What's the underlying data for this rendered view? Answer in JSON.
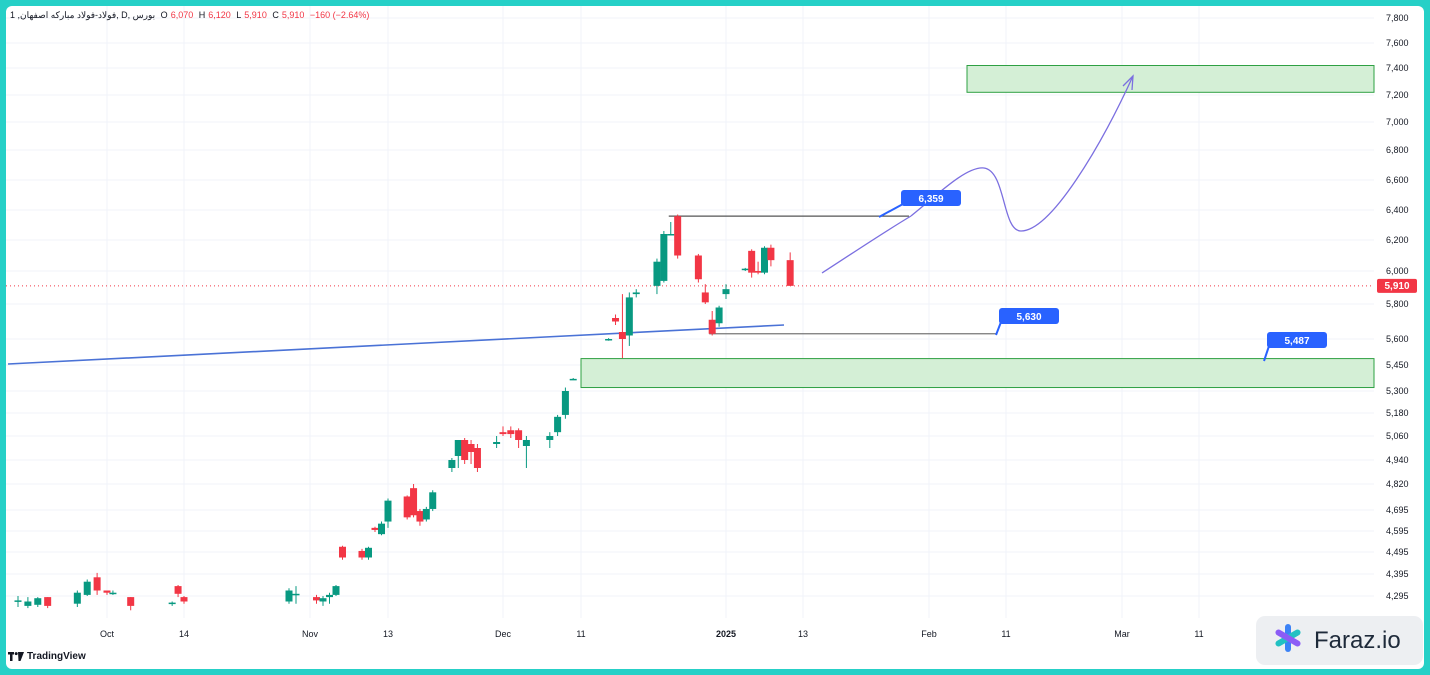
{
  "legend": {
    "symbol": "1 ,فولاد-فولاد مبارکه اصفهان, D, بورس",
    "open_label": "O",
    "open_value": "6,070",
    "high_label": "H",
    "high_value": "6,120",
    "low_label": "L",
    "low_value": "5,910",
    "close_label": "C",
    "close_value": "5,910",
    "change": "−160 (−2.64%)"
  },
  "branding": {
    "tradingview": "TradingView",
    "faraz": "Faraz.io"
  },
  "colors": {
    "up": "#089981",
    "down": "#f23645",
    "zone_fill": "#d4efd6",
    "zone_stroke": "#2ea043",
    "trendline": "#4a72d6",
    "tag_bg": "#2962ff",
    "path": "#7b6fe0"
  },
  "chart_data": {
    "type": "candlestick",
    "y_ticks": [
      "7,800",
      "7,600",
      "7,400",
      "7,200",
      "7,000",
      "6,800",
      "6,600",
      "6,400",
      "6,200",
      "6,000",
      "5,800",
      "5,600",
      "5,450",
      "5,300",
      "5,180",
      "5,060",
      "4,940",
      "4,820",
      "4,695",
      "4,595",
      "4,495",
      "4,395",
      "4,295"
    ],
    "x_ticks": [
      "Oct",
      "14",
      "Nov",
      "13",
      "Dec",
      "11",
      "2025",
      "13",
      "Feb",
      "11",
      "Mar",
      "11"
    ],
    "last_price": "5,910",
    "annotations": [
      {
        "label": "6,359",
        "kind": "resistance"
      },
      {
        "label": "5,630",
        "kind": "support"
      },
      {
        "label": "5,487",
        "kind": "demand-zone"
      }
    ],
    "zones": [
      {
        "top": 7420,
        "bottom": 7220
      },
      {
        "top": 5487,
        "bottom": 5320
      }
    ],
    "candles": [
      {
        "d": "Sep 22",
        "o": 4275,
        "h": 4295,
        "l": 4245,
        "c": 4275
      },
      {
        "d": "Sep 23",
        "o": 4250,
        "h": 4290,
        "l": 4240,
        "c": 4270
      },
      {
        "d": "Sep 24",
        "o": 4255,
        "h": 4290,
        "l": 4245,
        "c": 4285
      },
      {
        "d": "Sep 25",
        "o": 4290,
        "h": 4280,
        "l": 4240,
        "c": 4250
      },
      {
        "d": "Sep 28",
        "o": 4260,
        "h": 4320,
        "l": 4245,
        "c": 4310
      },
      {
        "d": "Sep 29",
        "o": 4300,
        "h": 4370,
        "l": 4295,
        "c": 4360
      },
      {
        "d": "Sep 30",
        "o": 4380,
        "h": 4400,
        "l": 4300,
        "c": 4320
      },
      {
        "d": "Oct 1",
        "o": 4320,
        "h": 4320,
        "l": 4300,
        "c": 4310
      },
      {
        "d": "Oct 2",
        "o": 4305,
        "h": 4320,
        "l": 4300,
        "c": 4310
      },
      {
        "d": "Oct 5",
        "o": 4290,
        "h": 4280,
        "l": 4230,
        "c": 4250
      },
      {
        "d": "Oct 12",
        "o": 4260,
        "h": 4270,
        "l": 4250,
        "c": 4265
      },
      {
        "d": "Oct 13",
        "o": 4340,
        "h": 4345,
        "l": 4290,
        "c": 4305
      },
      {
        "d": "Oct 14",
        "o": 4290,
        "h": 4295,
        "l": 4260,
        "c": 4270
      },
      {
        "d": "Oct 29",
        "o": 4270,
        "h": 4330,
        "l": 4260,
        "c": 4320
      },
      {
        "d": "Oct 30",
        "o": 4300,
        "h": 4340,
        "l": 4260,
        "c": 4305
      },
      {
        "d": "Nov 2",
        "o": 4290,
        "h": 4300,
        "l": 4260,
        "c": 4275
      },
      {
        "d": "Nov 3",
        "o": 4270,
        "h": 4295,
        "l": 4250,
        "c": 4285
      },
      {
        "d": "Nov 4",
        "o": 4290,
        "h": 4310,
        "l": 4260,
        "c": 4300
      },
      {
        "d": "Nov 5",
        "o": 4300,
        "h": 4345,
        "l": 4295,
        "c": 4340
      },
      {
        "d": "Nov 6",
        "o": 4520,
        "h": 4525,
        "l": 4460,
        "c": 4470
      },
      {
        "d": "Nov 9",
        "o": 4500,
        "h": 4510,
        "l": 4460,
        "c": 4470
      },
      {
        "d": "Nov 10",
        "o": 4470,
        "h": 4520,
        "l": 4460,
        "c": 4515
      },
      {
        "d": "Nov 11",
        "o": 4610,
        "h": 4615,
        "l": 4590,
        "c": 4600
      },
      {
        "d": "Nov 12",
        "o": 4580,
        "h": 4640,
        "l": 4575,
        "c": 4630
      },
      {
        "d": "Nov 13",
        "o": 4640,
        "h": 4750,
        "l": 4610,
        "c": 4740
      },
      {
        "d": "Nov 16",
        "o": 4760,
        "h": 4765,
        "l": 4650,
        "c": 4660
      },
      {
        "d": "Nov 17",
        "o": 4800,
        "h": 4820,
        "l": 4660,
        "c": 4670
      },
      {
        "d": "Nov 18",
        "o": 4690,
        "h": 4700,
        "l": 4620,
        "c": 4640
      },
      {
        "d": "Nov 19",
        "o": 4650,
        "h": 4710,
        "l": 4640,
        "c": 4700
      },
      {
        "d": "Nov 20",
        "o": 4700,
        "h": 4790,
        "l": 4690,
        "c": 4780
      },
      {
        "d": "Nov 23",
        "o": 4900,
        "h": 4950,
        "l": 4880,
        "c": 4940
      },
      {
        "d": "Nov 24",
        "o": 4960,
        "h": 5040,
        "l": 4900,
        "c": 5040
      },
      {
        "d": "Nov 25",
        "o": 5040,
        "h": 5050,
        "l": 4920,
        "c": 4940
      },
      {
        "d": "Nov 26",
        "o": 5020,
        "h": 5040,
        "l": 4920,
        "c": 4980
      },
      {
        "d": "Nov 27",
        "o": 5000,
        "h": 5020,
        "l": 4880,
        "c": 4900
      },
      {
        "d": "Nov 30",
        "o": 5020,
        "h": 5060,
        "l": 5000,
        "c": 5030
      },
      {
        "d": "Dec 1",
        "o": 5080,
        "h": 5110,
        "l": 5060,
        "c": 5070
      },
      {
        "d": "Dec 2",
        "o": 5090,
        "h": 5110,
        "l": 5050,
        "c": 5070
      },
      {
        "d": "Dec 3",
        "o": 5090,
        "h": 5100,
        "l": 5000,
        "c": 5040
      },
      {
        "d": "Dec 4",
        "o": 5010,
        "h": 5060,
        "l": 4900,
        "c": 5040
      },
      {
        "d": "Dec 7",
        "o": 5040,
        "h": 5080,
        "l": 5000,
        "c": 5060
      },
      {
        "d": "Dec 8",
        "o": 5080,
        "h": 5170,
        "l": 5060,
        "c": 5160
      },
      {
        "d": "Dec 9",
        "o": 5170,
        "h": 5320,
        "l": 5150,
        "c": 5300
      },
      {
        "d": "Dec 10",
        "o": 5370,
        "h": 5375,
        "l": 5365,
        "c": 5370
      },
      {
        "d": "Dec 15",
        "o": 5600,
        "h": 5605,
        "l": 5590,
        "c": 5600
      },
      {
        "d": "Dec 16",
        "o": 5720,
        "h": 5740,
        "l": 5680,
        "c": 5700
      },
      {
        "d": "Dec 17",
        "o": 5640,
        "h": 5860,
        "l": 5490,
        "c": 5600
      },
      {
        "d": "Dec 18",
        "o": 5620,
        "h": 5870,
        "l": 5560,
        "c": 5840
      },
      {
        "d": "Dec 19",
        "o": 5860,
        "h": 5890,
        "l": 5840,
        "c": 5870
      },
      {
        "d": "Dec 22",
        "o": 5910,
        "h": 6080,
        "l": 5860,
        "c": 6060
      },
      {
        "d": "Dec 23",
        "o": 5940,
        "h": 6260,
        "l": 5930,
        "c": 6240
      },
      {
        "d": "Dec 24",
        "o": 6240,
        "h": 6320,
        "l": 6230,
        "c": 6240
      },
      {
        "d": "Dec 25",
        "o": 6359,
        "h": 6370,
        "l": 6080,
        "c": 6100
      },
      {
        "d": "Dec 28",
        "o": 6100,
        "h": 6110,
        "l": 5930,
        "c": 5950
      },
      {
        "d": "Dec 29",
        "o": 5870,
        "h": 5920,
        "l": 5800,
        "c": 5810
      },
      {
        "d": "Dec 30",
        "o": 5710,
        "h": 5760,
        "l": 5620,
        "c": 5630
      },
      {
        "d": "Dec 31",
        "o": 5690,
        "h": 5790,
        "l": 5670,
        "c": 5780
      },
      {
        "d": "Jan 1",
        "o": 5860,
        "h": 5920,
        "l": 5830,
        "c": 5890
      },
      {
        "d": "Jan 4",
        "o": 6010,
        "h": 6020,
        "l": 6000,
        "c": 6015
      },
      {
        "d": "Jan 5",
        "o": 6130,
        "h": 6140,
        "l": 5960,
        "c": 5990
      },
      {
        "d": "Jan 6",
        "o": 6000,
        "h": 6060,
        "l": 5980,
        "c": 5990
      },
      {
        "d": "Jan 7",
        "o": 5990,
        "h": 6160,
        "l": 5980,
        "c": 6150
      },
      {
        "d": "Jan 8",
        "o": 6150,
        "h": 6170,
        "l": 6030,
        "c": 6070
      },
      {
        "d": "Jan 11",
        "o": 6070,
        "h": 6120,
        "l": 5910,
        "c": 5910
      }
    ]
  }
}
